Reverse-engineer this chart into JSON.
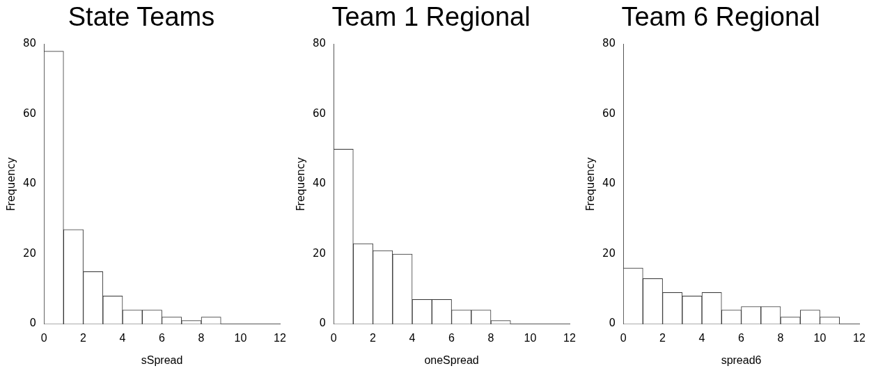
{
  "chart_data": [
    {
      "type": "histogram",
      "title": "State Teams",
      "xlabel": "sSpread",
      "ylabel": "Frequency",
      "bins": [
        0,
        1,
        2,
        3,
        4,
        5,
        6,
        7,
        8,
        9
      ],
      "values": [
        78,
        27,
        15,
        8,
        4,
        4,
        2,
        1,
        2
      ],
      "color": "#ffffff",
      "xlim": [
        0,
        12
      ],
      "xticks": [
        0,
        2,
        4,
        6,
        8,
        10,
        12
      ],
      "ylim": [
        0,
        80
      ],
      "yticks": [
        0,
        20,
        40,
        60,
        80
      ],
      "grid": false,
      "legend": false
    },
    {
      "type": "histogram",
      "title": "Team 1 Regional",
      "xlabel": "oneSpread",
      "ylabel": "Frequency",
      "bins": [
        0,
        1,
        2,
        3,
        4,
        5,
        6,
        7,
        8,
        9
      ],
      "values": [
        50,
        23,
        21,
        20,
        7,
        7,
        4,
        4,
        1
      ],
      "color": "#ffffff",
      "xlim": [
        0,
        12
      ],
      "xticks": [
        0,
        2,
        4,
        6,
        8,
        10,
        12
      ],
      "ylim": [
        0,
        80
      ],
      "yticks": [
        0,
        20,
        40,
        60,
        80
      ],
      "grid": false,
      "legend": false
    },
    {
      "type": "histogram",
      "title": "Team 6 Regional",
      "xlabel": "spread6",
      "ylabel": "Frequency",
      "bins": [
        0,
        1,
        2,
        3,
        4,
        5,
        6,
        7,
        8,
        9,
        10,
        11
      ],
      "values": [
        16,
        13,
        9,
        8,
        9,
        4,
        5,
        5,
        2,
        4,
        2
      ],
      "color": "#ffffff",
      "xlim": [
        0,
        12
      ],
      "xticks": [
        0,
        2,
        4,
        6,
        8,
        10,
        12
      ],
      "ylim": [
        0,
        80
      ],
      "yticks": [
        0,
        20,
        40,
        60,
        80
      ],
      "grid": false,
      "legend": false
    }
  ]
}
